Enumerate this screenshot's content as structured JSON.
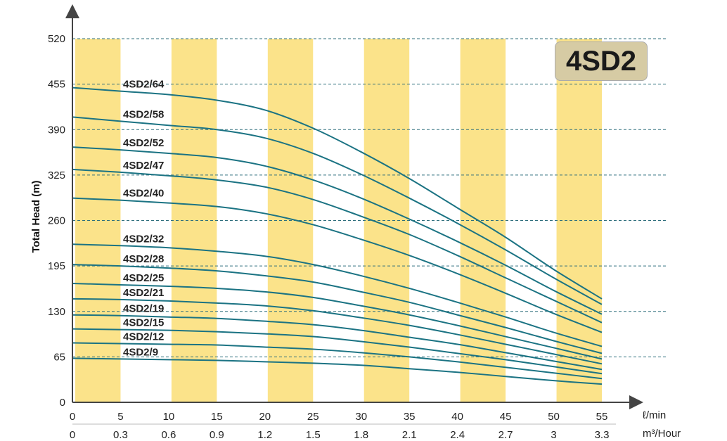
{
  "chart_data": {
    "type": "line",
    "model": "4SD2",
    "ylabel": "Total Head (m)",
    "x_unit": "ℓ/min",
    "x2_unit": "m³/Hour",
    "ylim": [
      0,
      520
    ],
    "xlim": [
      0,
      55
    ],
    "y_ticks": [
      "0",
      "65",
      "130",
      "195",
      "260",
      "325",
      "390",
      "455",
      "520"
    ],
    "x_ticks": [
      "0",
      "5",
      "10",
      "15",
      "20",
      "25",
      "30",
      "35",
      "40",
      "45",
      "50",
      "55"
    ],
    "x2_ticks": [
      "0",
      "0.3",
      "0.6",
      "0.9",
      "1.2",
      "1.5",
      "1.8",
      "2.1",
      "2.4",
      "2.7",
      "3",
      "3.3"
    ],
    "grid": "dashed horizontal lines at y ticks",
    "band_color": "#fbe38a",
    "curve_color": "#1b7383",
    "x": [
      0,
      5,
      10,
      15,
      20,
      25,
      30,
      35,
      40,
      45,
      50,
      55
    ],
    "series": [
      {
        "name": "4SD2/64",
        "values": [
          450,
          445,
          440,
          432,
          418,
          392,
          358,
          320,
          278,
          236,
          190,
          148
        ]
      },
      {
        "name": "4SD2/58",
        "values": [
          408,
          402,
          396,
          390,
          378,
          356,
          326,
          292,
          256,
          218,
          178,
          140
        ]
      },
      {
        "name": "4SD2/52",
        "values": [
          365,
          361,
          356,
          350,
          338,
          318,
          292,
          262,
          230,
          196,
          160,
          126
        ]
      },
      {
        "name": "4SD2/47",
        "values": [
          333,
          329,
          324,
          318,
          308,
          290,
          266,
          240,
          210,
          178,
          146,
          114
        ]
      },
      {
        "name": "4SD2/40",
        "values": [
          292,
          289,
          285,
          280,
          270,
          254,
          233,
          210,
          184,
          156,
          127,
          100
        ]
      },
      {
        "name": "4SD2/32",
        "values": [
          226,
          224,
          221,
          216,
          209,
          197,
          181,
          163,
          143,
          122,
          100,
          80
        ]
      },
      {
        "name": "4SD2/28",
        "values": [
          197,
          195,
          192,
          188,
          181,
          172,
          158,
          143,
          125,
          107,
          88,
          70
        ]
      },
      {
        "name": "4SD2/25",
        "values": [
          170,
          168,
          166,
          163,
          158,
          150,
          138,
          125,
          110,
          94,
          78,
          62
        ]
      },
      {
        "name": "4SD2/21",
        "values": [
          148,
          147,
          145,
          142,
          138,
          131,
          121,
          110,
          97,
          83,
          69,
          55
        ]
      },
      {
        "name": "4SD2/19",
        "values": [
          125,
          124,
          122,
          120,
          116,
          111,
          103,
          93,
          83,
          71,
          59,
          47
        ]
      },
      {
        "name": "4SD2/15",
        "values": [
          105,
          104,
          103,
          101,
          98,
          94,
          87,
          79,
          70,
          61,
          51,
          41
        ]
      },
      {
        "name": "4SD2/12",
        "values": [
          85,
          84,
          83,
          82,
          79,
          76,
          71,
          65,
          58,
          50,
          42,
          34
        ]
      },
      {
        "name": "4SD2/9",
        "values": [
          63,
          62,
          61,
          60,
          58,
          56,
          53,
          48,
          43,
          37,
          31,
          26
        ]
      }
    ]
  }
}
